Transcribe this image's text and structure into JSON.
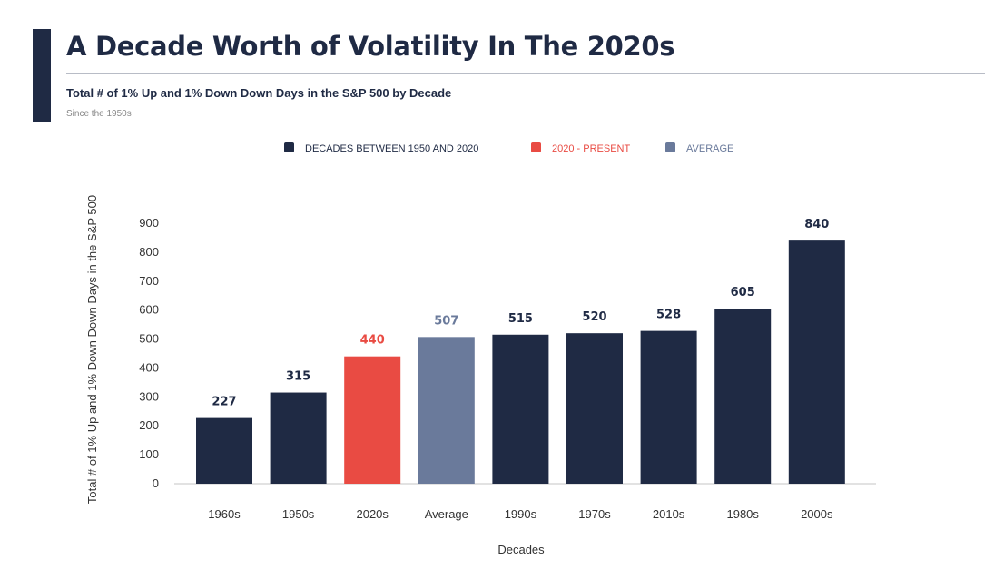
{
  "header": {
    "title": "A Decade Worth of Volatility In The 2020s",
    "subtitle": "Total # of 1% Up and 1% Down Down Days in the S&P 500 by Decade",
    "since": "Since the 1950s"
  },
  "colors": {
    "dark": "#1f2a44",
    "red": "#e94b43",
    "average": "#6a7a9b",
    "axis_text": "#333333"
  },
  "chart_data": {
    "type": "bar",
    "categories": [
      "1960s",
      "1950s",
      "2020s",
      "Average",
      "1990s",
      "1970s",
      "2010s",
      "1980s",
      "2000s"
    ],
    "values": [
      227,
      315,
      440,
      507,
      515,
      520,
      528,
      605,
      840
    ],
    "groups": [
      "decade",
      "decade",
      "present",
      "average",
      "decade",
      "decade",
      "decade",
      "decade",
      "decade"
    ],
    "xlabel": "Decades",
    "ylabel": "Total # of 1% Up and 1% Down Down Days in the S&P 500",
    "ylim": [
      0,
      900
    ],
    "yticks": [
      0,
      100,
      200,
      300,
      400,
      500,
      600,
      700,
      800,
      900
    ],
    "grid": false,
    "legend": [
      {
        "label": "DECADES BETWEEN 1950 AND 2020",
        "group": "decade"
      },
      {
        "label": "2020 - PRESENT",
        "group": "present"
      },
      {
        "label": "AVERAGE",
        "group": "average"
      }
    ]
  }
}
